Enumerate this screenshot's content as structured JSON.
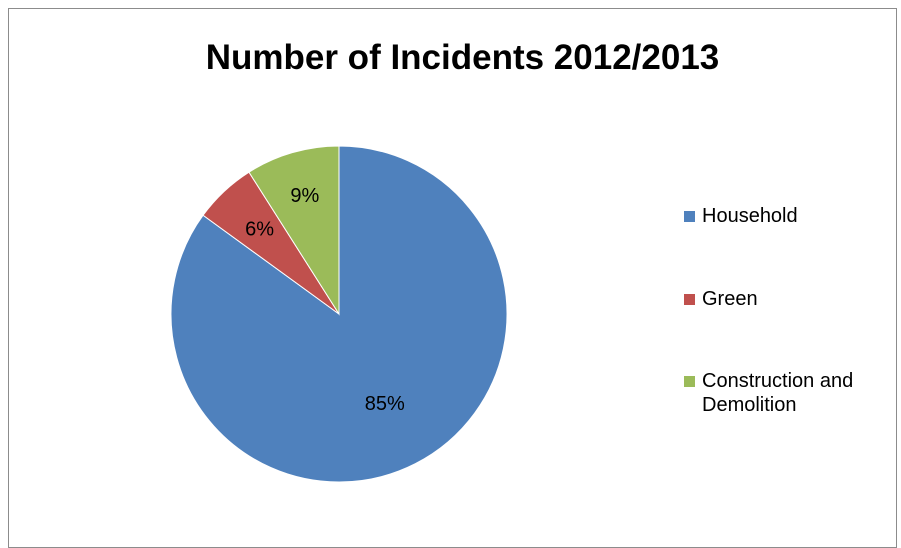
{
  "chart_data": {
    "type": "pie",
    "title": "Number of Incidents 2012/2013",
    "categories": [
      "Household",
      "Green",
      "Construction and Demolition"
    ],
    "values": [
      85,
      6,
      9
    ],
    "data_labels": [
      "85%",
      "6%",
      "9%"
    ],
    "colors": [
      "#4f81bd",
      "#c0504d",
      "#9bbb59"
    ],
    "legend": "right",
    "start_angle": "top, clockwise"
  }
}
